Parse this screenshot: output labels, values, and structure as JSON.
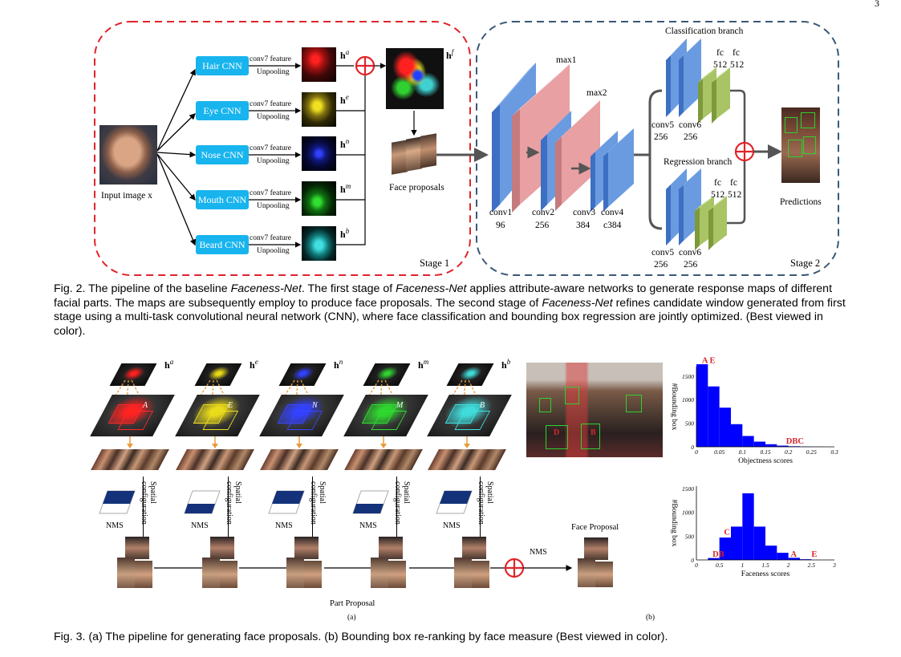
{
  "page": {
    "number": "3"
  },
  "fig2": {
    "input_label": "Input image x",
    "cnn_labels": [
      "Hair CNN",
      "Eye CNN",
      "Nose CNN",
      "Mouth CNN",
      "Beard CNN"
    ],
    "feature_label": "conv7 feature",
    "unpool_label": "Unpooling",
    "h_symbols": [
      "a",
      "e",
      "n",
      "m",
      "b"
    ],
    "hf_symbol": "f",
    "face_proposals_label": "Face proposals",
    "stage1_label": "Stage 1",
    "stage2_label": "Stage 2",
    "max1": "max1",
    "max2": "max2",
    "conv1": "conv1",
    "conv1_n": "96",
    "conv2": "conv2",
    "conv2_n": "256",
    "conv3": "conv3",
    "conv3_n": "384",
    "conv4": "conv4",
    "conv4_n": "c384",
    "class_branch": "Classification branch",
    "regr_branch": "Regression branch",
    "fc": "fc",
    "fc_n": "512",
    "conv5": "conv5",
    "conv6": "conv6",
    "conv56_n": "256",
    "predictions": "Predictions",
    "caption": {
      "prefix": "Fig. 2. The pipeline of the baseline ",
      "n1": "Faceness-Net",
      "t1": ". The first stage of ",
      "n2": "Faceness-Net",
      "t2": " applies attribute-aware networks to generate response maps of different facial parts. The maps are subsequently employ to produce face proposals. The second stage of ",
      "n3": "Faceness-Net",
      "t3": " refines candidate window generated from first stage using a multi-task convolutional neural network (CNN), where face classification and bounding box regression are jointly optimized. (Best viewed in color)."
    }
  },
  "fig3": {
    "h_symbols": [
      "a",
      "e",
      "n",
      "m",
      "b"
    ],
    "map_letters": [
      "A",
      "E",
      "N",
      "M",
      "B"
    ],
    "spatial_label": "Spatial configuration",
    "nms_label": "NMS",
    "face_proposal_label": "Face Proposal",
    "part_proposal_label": "Part Proposal",
    "sub_a": "(a)",
    "sub_b": "(b)",
    "caption": "Fig. 3. (a) The pipeline for generating face proposals. (b) Bounding box re-ranking by face measure (Best viewed in color)."
  },
  "chart_data": [
    {
      "type": "bar",
      "xlabel": "Objectness scores",
      "ylabel": "#Bounding box",
      "x_ticks": [
        "0",
        "0.05",
        "0.1",
        "0.15",
        "0.2",
        "0.25",
        "0.3"
      ],
      "y_ticks": [
        "0",
        "500",
        "1000",
        "1500"
      ],
      "xlim": [
        0,
        0.3
      ],
      "ylim": [
        0,
        1700
      ],
      "bin_width": 0.025,
      "bin_starts": [
        0,
        0.025,
        0.05,
        0.075,
        0.1,
        0.125,
        0.15,
        0.175,
        0.2,
        0.225,
        0.25
      ],
      "values": [
        1750,
        1280,
        830,
        480,
        230,
        110,
        55,
        25,
        12,
        6,
        3
      ],
      "color": "#0000ff",
      "annotations": [
        {
          "text": "A E",
          "x": 0.012,
          "y": 1780
        },
        {
          "text": "DBC",
          "x": 0.195,
          "y": 70
        }
      ],
      "annotation_color": "#d8262b"
    },
    {
      "type": "bar",
      "xlabel": "Faceness scores",
      "ylabel": "#Bounding box",
      "x_ticks": [
        "0",
        "0.5",
        "1",
        "1.5",
        "2",
        "2.5",
        "3"
      ],
      "y_ticks": [
        "0",
        "500",
        "1000",
        "1500"
      ],
      "xlim": [
        0,
        3
      ],
      "ylim": [
        0,
        1550
      ],
      "bin_width": 0.25,
      "bin_starts": [
        0.25,
        0.5,
        0.75,
        1.0,
        1.25,
        1.5,
        1.75,
        2.0,
        2.25
      ],
      "values": [
        40,
        470,
        700,
        1400,
        700,
        300,
        150,
        45,
        15
      ],
      "color": "#0000ff",
      "annotations": [
        {
          "text": "C",
          "x": 0.6,
          "y": 530
        },
        {
          "text": "DB",
          "x": 0.35,
          "y": 70
        },
        {
          "text": "A",
          "x": 2.05,
          "y": 70
        },
        {
          "text": "E",
          "x": 2.5,
          "y": 70
        }
      ],
      "annotation_color": "#d8262b"
    }
  ]
}
